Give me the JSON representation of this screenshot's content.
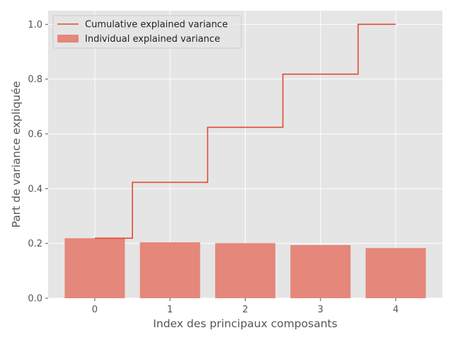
{
  "chart_data": {
    "type": "bar",
    "xlabel": "Index des principaux composants",
    "ylabel": "Part de variance expliquée",
    "x": [
      0,
      1,
      2,
      3,
      4
    ],
    "x_tick_labels": [
      "0",
      "1",
      "2",
      "3",
      "4"
    ],
    "y_ticks": [
      0.0,
      0.2,
      0.4,
      0.6,
      0.8,
      1.0
    ],
    "y_tick_labels": [
      "0.0",
      "0.2",
      "0.4",
      "0.6",
      "0.8",
      "1.0"
    ],
    "xlim": [
      -0.62,
      4.62
    ],
    "ylim": [
      0,
      1.05
    ],
    "grid": true,
    "legend_position": "top-left",
    "series": [
      {
        "name": "Individual explained variance",
        "kind": "bar",
        "color": "#E5877A",
        "values": [
          0.219,
          0.204,
          0.201,
          0.194,
          0.183
        ]
      },
      {
        "name": "Cumulative explained variance",
        "kind": "step",
        "color": "#E24A33",
        "values": [
          0.219,
          0.423,
          0.624,
          0.818,
          1.0
        ]
      }
    ]
  },
  "colors": {
    "plot_background": "#E5E5E5",
    "grid": "#FFFFFF",
    "text": "#555555"
  }
}
